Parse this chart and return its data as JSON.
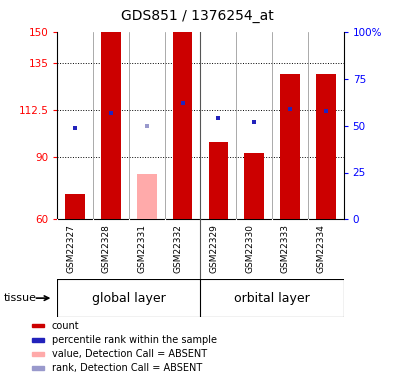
{
  "title": "GDS851 / 1376254_at",
  "samples": [
    "GSM22327",
    "GSM22328",
    "GSM22331",
    "GSM22332",
    "GSM22329",
    "GSM22330",
    "GSM22333",
    "GSM22334"
  ],
  "count_values": [
    72,
    150,
    null,
    150,
    97,
    92,
    130,
    130
  ],
  "count_absent": [
    null,
    null,
    82,
    null,
    null,
    null,
    null,
    null
  ],
  "rank_values": [
    49,
    57,
    null,
    62,
    54,
    52,
    59,
    58
  ],
  "rank_absent": [
    null,
    null,
    50,
    null,
    null,
    null,
    null,
    null
  ],
  "ylim_left": [
    60,
    150
  ],
  "ylim_right": [
    0,
    100
  ],
  "yticks_left": [
    60,
    90,
    112.5,
    135,
    150
  ],
  "yticks_right": [
    0,
    25,
    50,
    75,
    100
  ],
  "ytick_labels_left": [
    "60",
    "90",
    "112.5",
    "135",
    "150"
  ],
  "ytick_labels_right": [
    "0",
    "25",
    "50",
    "75",
    "100%"
  ],
  "bar_color_present": "#cc0000",
  "bar_color_absent": "#ffaaaa",
  "rank_color_present": "#2222bb",
  "rank_color_absent": "#9999cc",
  "bar_width": 0.55,
  "sample_bg_color": "#cccccc",
  "group_bg_color": "#88ee88",
  "tissue_label": "tissue",
  "legend_items": [
    {
      "color": "#cc0000",
      "label": "count"
    },
    {
      "color": "#2222bb",
      "label": "percentile rank within the sample"
    },
    {
      "color": "#ffaaaa",
      "label": "value, Detection Call = ABSENT"
    },
    {
      "color": "#9999cc",
      "label": "rank, Detection Call = ABSENT"
    }
  ]
}
